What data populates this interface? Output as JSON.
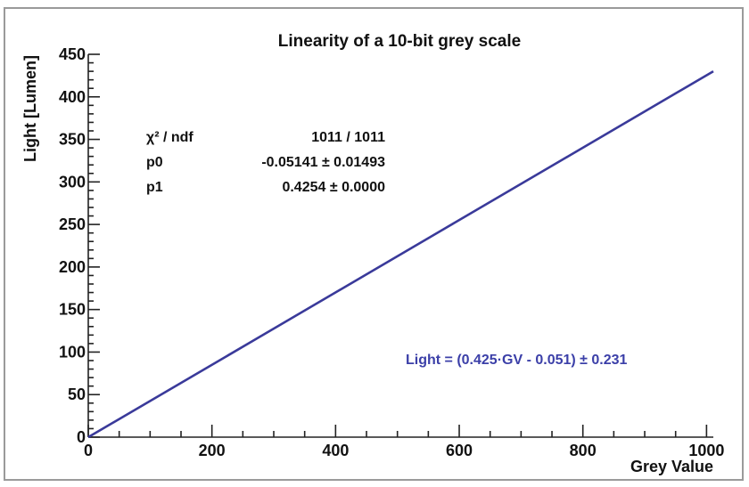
{
  "chart_data": {
    "type": "line",
    "title": "Linearity of a 10-bit grey scale",
    "xlabel": "Grey Value",
    "ylabel": "Light [Lumen]",
    "xlim": [
      0,
      1011
    ],
    "ylim": [
      0,
      450
    ],
    "x_ticks": [
      0,
      200,
      400,
      600,
      800,
      1000
    ],
    "y_ticks": [
      0,
      50,
      100,
      150,
      200,
      250,
      300,
      350,
      400,
      450
    ],
    "x_minor_step": 50,
    "y_minor_step": 10,
    "grid": false,
    "series": [
      {
        "x": [
          0,
          1011
        ],
        "y": [
          -0.05141,
          430.02
        ],
        "color": "#3a3a9a"
      }
    ],
    "stats": [
      {
        "label": "χ² / ndf",
        "value": "1011 / 1011"
      },
      {
        "label": "p0",
        "value": "-0.05141 ± 0.01493"
      },
      {
        "label": "p1",
        "value": "0.4254 ± 0.0000"
      }
    ],
    "annotation": {
      "text": "Light = (0.425·GV - 0.051) ± 0.231",
      "color": "#3b3fa8"
    }
  }
}
